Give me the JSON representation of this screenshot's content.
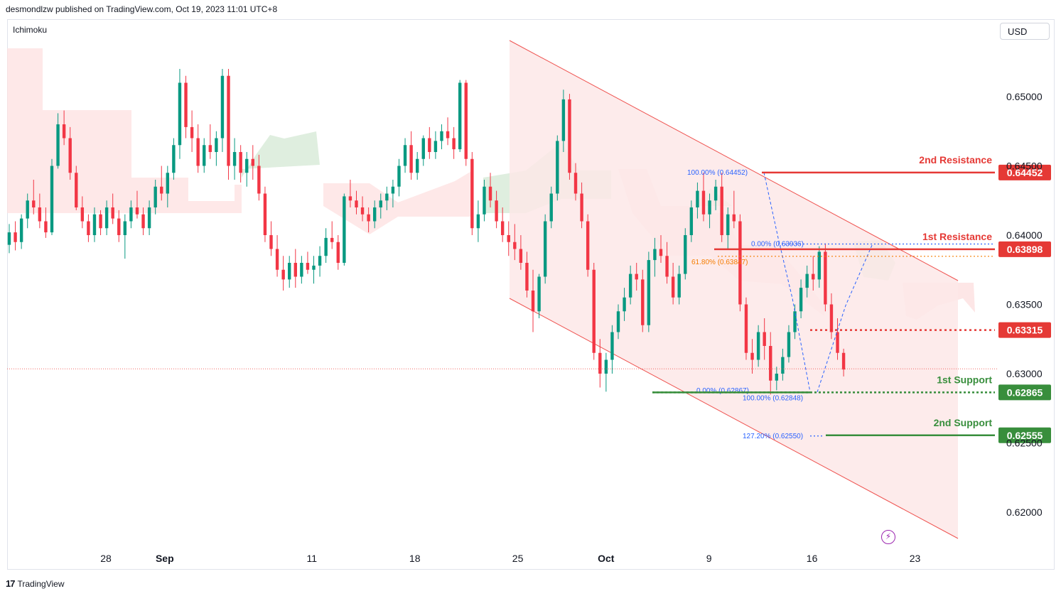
{
  "header": {
    "publisher_line": "desmondlzw published on TradingView.com, Oct 19, 2023 11:01 UTC+8"
  },
  "toolbar": {
    "indicator_label": "Ichimoku",
    "currency_label": "USD"
  },
  "footer": {
    "logo_glyph": "17",
    "brand": "TradingView"
  },
  "icons": {
    "alert": "lightning-icon"
  },
  "chart_data": {
    "type": "candlestick",
    "y_axis_ticks": [
      "0.65000",
      "0.64500",
      "0.64000",
      "0.63500",
      "0.63000",
      "0.62500",
      "0.62000"
    ],
    "y_range": [
      0.6175,
      0.6565
    ],
    "x_axis_ticks": [
      {
        "label": "28",
        "day": 4
      },
      {
        "label": "Sep",
        "day": 8
      },
      {
        "label": "11",
        "day": 18
      },
      {
        "label": "18",
        "day": 25
      },
      {
        "label": "25",
        "day": 32
      },
      {
        "label": "Oct",
        "day": 38
      },
      {
        "label": "9",
        "day": 45
      },
      {
        "label": "16",
        "day": 52
      },
      {
        "label": "23",
        "day": 59
      }
    ],
    "levels": [
      {
        "name": "2nd Resistance",
        "value": "0.64452",
        "color": "#e53935",
        "role": "resistance"
      },
      {
        "name": "1st Resistance",
        "value": "0.63898",
        "color": "#e53935",
        "role": "resistance"
      },
      {
        "name": "",
        "value": "0.63315",
        "color": "#e53935",
        "role": "intermediate"
      },
      {
        "name": "1st Support",
        "value": "0.62865",
        "color": "#388e3c",
        "role": "support"
      },
      {
        "name": "2nd Support",
        "value": "0.62555",
        "color": "#388e3c",
        "role": "support"
      }
    ],
    "fib_labels": [
      {
        "text": "100.00% (0.64452)",
        "price": 0.64452,
        "color": "#2962ff"
      },
      {
        "text": "0.00% (0.63936)",
        "price": 0.63936,
        "color": "#2962ff"
      },
      {
        "text": "61.80% (0.63847)",
        "price": 0.63847,
        "color": "#f57c00"
      },
      {
        "text": "0.00% (0.62867)",
        "price": 0.62867,
        "color": "#2962ff"
      },
      {
        "text": "100.00% (0.62848)",
        "price": 0.62848,
        "color": "#2962ff"
      },
      {
        "text": "127.20% (0.62550)",
        "price": 0.6255,
        "color": "#2962ff"
      }
    ],
    "last_price_line": 0.63035,
    "candles": [
      [
        0.6393,
        0.6408,
        0.6387,
        0.6402
      ],
      [
        0.6402,
        0.641,
        0.6389,
        0.6395
      ],
      [
        0.6395,
        0.6415,
        0.639,
        0.6412
      ],
      [
        0.6412,
        0.643,
        0.6405,
        0.6425
      ],
      [
        0.6425,
        0.644,
        0.6415,
        0.642
      ],
      [
        0.642,
        0.643,
        0.6405,
        0.641
      ],
      [
        0.641,
        0.642,
        0.6398,
        0.6402
      ],
      [
        0.6402,
        0.6455,
        0.64,
        0.645
      ],
      [
        0.645,
        0.6488,
        0.6448,
        0.648
      ],
      [
        0.648,
        0.649,
        0.6465,
        0.647
      ],
      [
        0.647,
        0.6478,
        0.644,
        0.6445
      ],
      [
        0.6445,
        0.645,
        0.6418,
        0.642
      ],
      [
        0.642,
        0.6428,
        0.6405,
        0.641
      ],
      [
        0.641,
        0.6415,
        0.6395,
        0.64
      ],
      [
        0.64,
        0.642,
        0.6395,
        0.6415
      ],
      [
        0.6415,
        0.6418,
        0.64,
        0.6405
      ],
      [
        0.6405,
        0.6425,
        0.64,
        0.642
      ],
      [
        0.642,
        0.643,
        0.6408,
        0.6412
      ],
      [
        0.6412,
        0.6418,
        0.6395,
        0.64
      ],
      [
        0.64,
        0.6415,
        0.6383,
        0.641
      ],
      [
        0.641,
        0.6425,
        0.6405,
        0.642
      ],
      [
        0.642,
        0.6432,
        0.6412,
        0.6415
      ],
      [
        0.6415,
        0.642,
        0.64,
        0.6405
      ],
      [
        0.6405,
        0.6425,
        0.64,
        0.642
      ],
      [
        0.642,
        0.644,
        0.6415,
        0.6435
      ],
      [
        0.6435,
        0.645,
        0.6425,
        0.643
      ],
      [
        0.643,
        0.645,
        0.642,
        0.6445
      ],
      [
        0.6445,
        0.647,
        0.644,
        0.6465
      ],
      [
        0.6465,
        0.652,
        0.6455,
        0.651
      ],
      [
        0.651,
        0.6515,
        0.647,
        0.6478
      ],
      [
        0.6478,
        0.649,
        0.646,
        0.647
      ],
      [
        0.647,
        0.648,
        0.6445,
        0.645
      ],
      [
        0.645,
        0.647,
        0.6445,
        0.6465
      ],
      [
        0.6465,
        0.648,
        0.6455,
        0.646
      ],
      [
        0.646,
        0.6475,
        0.645,
        0.647
      ],
      [
        0.647,
        0.652,
        0.646,
        0.6515
      ],
      [
        0.6515,
        0.652,
        0.644,
        0.645
      ],
      [
        0.645,
        0.647,
        0.644,
        0.646
      ],
      [
        0.646,
        0.6465,
        0.6438,
        0.6445
      ],
      [
        0.6445,
        0.646,
        0.6435,
        0.6455
      ],
      [
        0.6455,
        0.6465,
        0.644,
        0.645
      ],
      [
        0.645,
        0.6458,
        0.6425,
        0.643
      ],
      [
        0.643,
        0.6435,
        0.6395,
        0.64
      ],
      [
        0.64,
        0.641,
        0.6385,
        0.639
      ],
      [
        0.639,
        0.64,
        0.637,
        0.6375
      ],
      [
        0.6375,
        0.6385,
        0.636,
        0.6368
      ],
      [
        0.6368,
        0.6385,
        0.6362,
        0.638
      ],
      [
        0.638,
        0.639,
        0.6362,
        0.637
      ],
      [
        0.637,
        0.6385,
        0.6365,
        0.638
      ],
      [
        0.638,
        0.6388,
        0.6372,
        0.6375
      ],
      [
        0.6375,
        0.6385,
        0.6365,
        0.6378
      ],
      [
        0.6378,
        0.6392,
        0.637,
        0.6385
      ],
      [
        0.6385,
        0.6405,
        0.638,
        0.6398
      ],
      [
        0.6398,
        0.641,
        0.639,
        0.6395
      ],
      [
        0.6395,
        0.64,
        0.6375,
        0.638
      ],
      [
        0.638,
        0.643,
        0.6378,
        0.6428
      ],
      [
        0.6428,
        0.644,
        0.642,
        0.6425
      ],
      [
        0.6425,
        0.6432,
        0.6415,
        0.642
      ],
      [
        0.642,
        0.6428,
        0.641,
        0.6415
      ],
      [
        0.6415,
        0.642,
        0.6402,
        0.641
      ],
      [
        0.641,
        0.6425,
        0.6405,
        0.642
      ],
      [
        0.642,
        0.643,
        0.6412,
        0.6425
      ],
      [
        0.6425,
        0.6435,
        0.6418,
        0.643
      ],
      [
        0.643,
        0.644,
        0.642,
        0.6435
      ],
      [
        0.6435,
        0.6455,
        0.6428,
        0.645
      ],
      [
        0.645,
        0.647,
        0.6445,
        0.6465
      ],
      [
        0.6465,
        0.6475,
        0.644,
        0.6445
      ],
      [
        0.6445,
        0.646,
        0.644,
        0.6455
      ],
      [
        0.6455,
        0.6472,
        0.645,
        0.647
      ],
      [
        0.647,
        0.6478,
        0.6455,
        0.646
      ],
      [
        0.646,
        0.6475,
        0.6455,
        0.6468
      ],
      [
        0.6468,
        0.648,
        0.6462,
        0.6475
      ],
      [
        0.6475,
        0.6485,
        0.6465,
        0.647
      ],
      [
        0.647,
        0.6478,
        0.6455,
        0.6462
      ],
      [
        0.6462,
        0.6512,
        0.646,
        0.651
      ],
      [
        0.651,
        0.6512,
        0.645,
        0.6455
      ],
      [
        0.6455,
        0.646,
        0.64,
        0.6405
      ],
      [
        0.6405,
        0.6425,
        0.6395,
        0.6415
      ],
      [
        0.6415,
        0.644,
        0.641,
        0.6435
      ],
      [
        0.6435,
        0.6445,
        0.642,
        0.6425
      ],
      [
        0.6425,
        0.6432,
        0.6405,
        0.641
      ],
      [
        0.641,
        0.642,
        0.6395,
        0.64
      ],
      [
        0.64,
        0.641,
        0.6385,
        0.6395
      ],
      [
        0.6395,
        0.6408,
        0.6382,
        0.639
      ],
      [
        0.639,
        0.64,
        0.6375,
        0.638
      ],
      [
        0.638,
        0.6388,
        0.6355,
        0.636
      ],
      [
        0.636,
        0.6375,
        0.633,
        0.6345
      ],
      [
        0.6345,
        0.6372,
        0.634,
        0.637
      ],
      [
        0.637,
        0.6415,
        0.6365,
        0.641
      ],
      [
        0.641,
        0.6435,
        0.6405,
        0.643
      ],
      [
        0.643,
        0.6472,
        0.6425,
        0.6468
      ],
      [
        0.6468,
        0.6505,
        0.646,
        0.6498
      ],
      [
        0.6498,
        0.6502,
        0.644,
        0.6445
      ],
      [
        0.6445,
        0.6452,
        0.6425,
        0.643
      ],
      [
        0.643,
        0.6438,
        0.6405,
        0.641
      ],
      [
        0.641,
        0.6415,
        0.637,
        0.6375
      ],
      [
        0.6375,
        0.638,
        0.631,
        0.6315
      ],
      [
        0.6315,
        0.6325,
        0.629,
        0.63
      ],
      [
        0.63,
        0.6315,
        0.6287,
        0.631
      ],
      [
        0.631,
        0.6335,
        0.63,
        0.633
      ],
      [
        0.633,
        0.635,
        0.6325,
        0.6345
      ],
      [
        0.6345,
        0.6362,
        0.6338,
        0.6355
      ],
      [
        0.6355,
        0.6378,
        0.635,
        0.6372
      ],
      [
        0.6372,
        0.638,
        0.636,
        0.6368
      ],
      [
        0.6368,
        0.6375,
        0.633,
        0.6335
      ],
      [
        0.6335,
        0.6388,
        0.633,
        0.6382
      ],
      [
        0.6382,
        0.6398,
        0.637,
        0.639
      ],
      [
        0.639,
        0.64,
        0.638,
        0.6385
      ],
      [
        0.6385,
        0.6395,
        0.6365,
        0.637
      ],
      [
        0.637,
        0.638,
        0.635,
        0.6355
      ],
      [
        0.6355,
        0.6378,
        0.635,
        0.6372
      ],
      [
        0.6372,
        0.6405,
        0.6368,
        0.64
      ],
      [
        0.64,
        0.6425,
        0.6395,
        0.642
      ],
      [
        0.642,
        0.6438,
        0.6412,
        0.6432
      ],
      [
        0.6432,
        0.6445,
        0.641,
        0.6415
      ],
      [
        0.6415,
        0.643,
        0.6405,
        0.6425
      ],
      [
        0.6425,
        0.644,
        0.6418,
        0.6435
      ],
      [
        0.6435,
        0.6445,
        0.6395,
        0.64
      ],
      [
        0.64,
        0.642,
        0.639,
        0.6415
      ],
      [
        0.6415,
        0.6432,
        0.6405,
        0.641
      ],
      [
        0.641,
        0.6415,
        0.6345,
        0.635
      ],
      [
        0.635,
        0.6355,
        0.631,
        0.6315
      ],
      [
        0.6315,
        0.6325,
        0.63,
        0.631
      ],
      [
        0.631,
        0.6335,
        0.6305,
        0.633
      ],
      [
        0.633,
        0.634,
        0.631,
        0.632
      ],
      [
        0.632,
        0.633,
        0.6285,
        0.6295
      ],
      [
        0.6295,
        0.6305,
        0.6288,
        0.63
      ],
      [
        0.63,
        0.6318,
        0.6295,
        0.6312
      ],
      [
        0.6312,
        0.6335,
        0.6308,
        0.633
      ],
      [
        0.633,
        0.635,
        0.6325,
        0.6345
      ],
      [
        0.6345,
        0.6368,
        0.634,
        0.6362
      ],
      [
        0.6362,
        0.6378,
        0.6355,
        0.6372
      ],
      [
        0.6372,
        0.6385,
        0.636,
        0.6368
      ],
      [
        0.6368,
        0.6392,
        0.6362,
        0.6388
      ],
      [
        0.6388,
        0.6394,
        0.6345,
        0.635
      ],
      [
        0.635,
        0.6358,
        0.6325,
        0.633
      ],
      [
        0.633,
        0.634,
        0.631,
        0.6315
      ],
      [
        0.6315,
        0.6318,
        0.6298,
        0.6303
      ]
    ]
  }
}
